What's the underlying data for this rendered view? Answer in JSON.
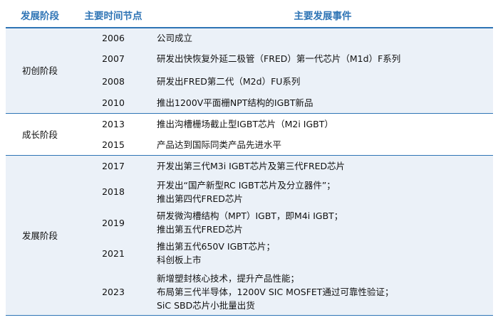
{
  "headers": {
    "stage": "发展阶段",
    "time": "主要时间节点",
    "event": "主要发展事件"
  },
  "stages": [
    {
      "name": "初创阶段",
      "rows": [
        {
          "year": "2006",
          "lines": [
            "公司成立"
          ]
        },
        {
          "year": "2007",
          "lines": [
            "研发出快恢复外延二极管（FRED）第一代芯片（M1d）F系列"
          ]
        },
        {
          "year": "2008",
          "lines": [
            "研发出FRED第二代（M2d）FU系列"
          ]
        },
        {
          "year": "2010",
          "lines": [
            "推出1200V平面栅NPT结构的IGBT新品"
          ]
        }
      ]
    },
    {
      "name": "成长阶段",
      "rows": [
        {
          "year": "2013",
          "lines": [
            "推出沟槽栅场截止型IGBT芯片（M2i IGBT）"
          ]
        },
        {
          "year": "2015",
          "lines": [
            "产品达到国际同类产品先进水平"
          ]
        }
      ]
    },
    {
      "name": "发展阶段",
      "rows": [
        {
          "year": "2017",
          "lines": [
            "开发出第三代M3i IGBT芯片及第三代FRED芯片"
          ]
        },
        {
          "year": "2018",
          "lines": [
            "开发出“国产新型RC IGBT芯片及分立器件”；",
            "推出第四代FRED芯片"
          ]
        },
        {
          "year": "2019",
          "lines": [
            "研发微沟槽结构（MPT）IGBT，即M4i IGBT；",
            "推出第五代FRED芯片"
          ]
        },
        {
          "year": "2021",
          "lines": [
            "推出第五代650V IGBT芯片；",
            "科创板上市"
          ]
        },
        {
          "year": "2023",
          "lines": [
            "新增塑封核心技术，提升产品性能；",
            "布局第三代半导体，1200V SIC MOSFET通过可靠性验证；",
            "SiC SBD芯片小批量出货"
          ]
        }
      ]
    }
  ],
  "colors": {
    "header_text": "#2E74B5",
    "rule": "#2E74B5",
    "shade": "#EBF1F8"
  }
}
